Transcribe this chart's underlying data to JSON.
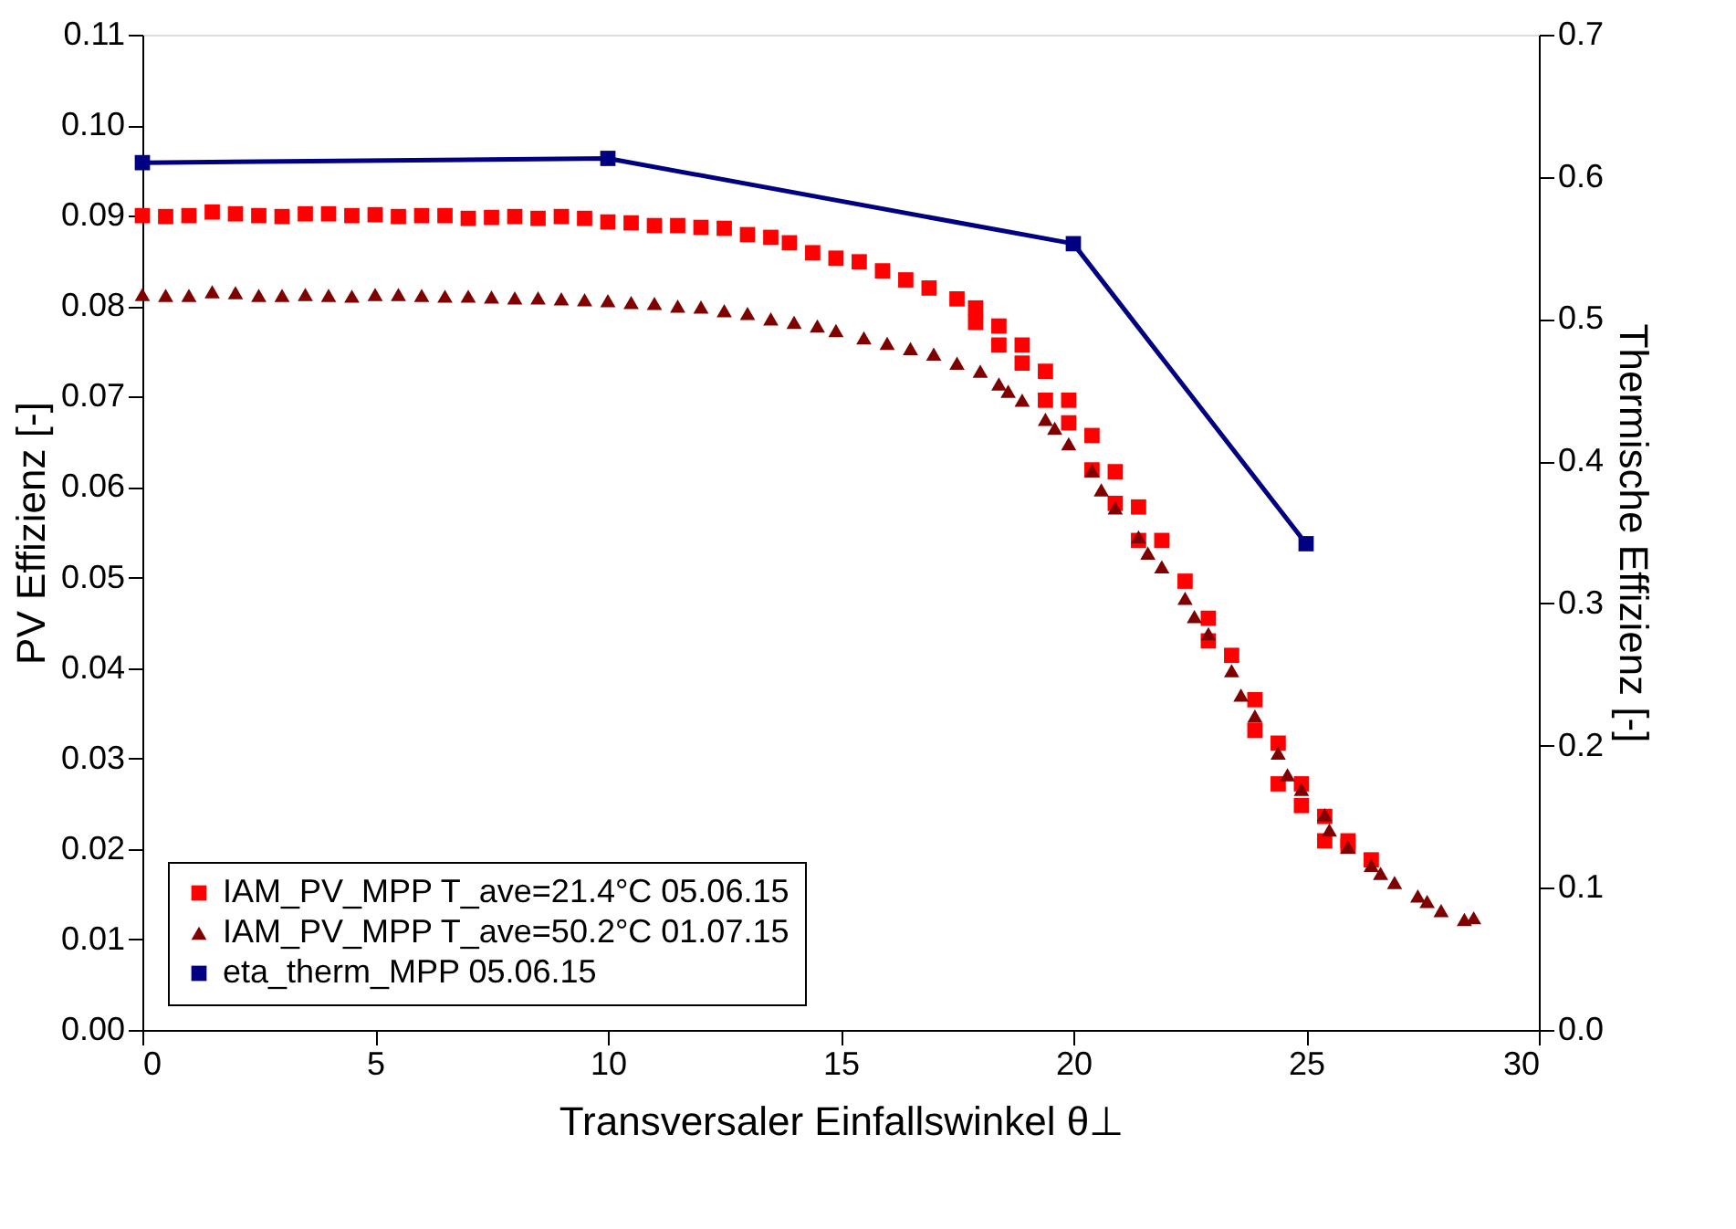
{
  "chart_data": {
    "type": "scatter",
    "xlabel": "Transversaler Einfallswinkel θ⊥",
    "ylabel": "PV Effizienz [-]",
    "y2label": "Thermische Effizienz [-]",
    "xlim": [
      0,
      30
    ],
    "xticks": [
      0,
      5,
      10,
      15,
      20,
      25,
      30
    ],
    "ylim": [
      0,
      0.11
    ],
    "yticks": [
      {
        "value": 0,
        "label": "0.00"
      },
      {
        "value": 0.01,
        "label": "0.01"
      },
      {
        "value": 0.02,
        "label": "0.02"
      },
      {
        "value": 0.03,
        "label": "0.03"
      },
      {
        "value": 0.04,
        "label": "0.04"
      },
      {
        "value": 0.05,
        "label": "0.05"
      },
      {
        "value": 0.06,
        "label": "0.06"
      },
      {
        "value": 0.07,
        "label": "0.07"
      },
      {
        "value": 0.08,
        "label": "0.08"
      },
      {
        "value": 0.09,
        "label": "0.09"
      },
      {
        "value": 0.1,
        "label": "0.10"
      },
      {
        "value": 0.11,
        "label": "0.11"
      }
    ],
    "y2lim": [
      0,
      0.7
    ],
    "y2ticks": [
      {
        "value": 0,
        "label": "0.0"
      },
      {
        "value": 0.1,
        "label": "0.1"
      },
      {
        "value": 0.2,
        "label": "0.2"
      },
      {
        "value": 0.3,
        "label": "0.3"
      },
      {
        "value": 0.4,
        "label": "0.4"
      },
      {
        "value": 0.5,
        "label": "0.5"
      },
      {
        "value": 0.6,
        "label": "0.6"
      },
      {
        "value": 0.7,
        "label": "0.7"
      }
    ],
    "legend": "bottom left",
    "series": [
      {
        "name": "IAM_PV_MPP T_ave=21.4°C 05.06.15",
        "marker": "square",
        "color": "#ff0000",
        "x": [
          0,
          0.5,
          1,
          1.5,
          2,
          2.5,
          3,
          3.5,
          4,
          4.5,
          5,
          5.5,
          6,
          6.5,
          7,
          7.5,
          8,
          8.5,
          9,
          9.5,
          10,
          10.5,
          11,
          11.5,
          12,
          12.5,
          13,
          13.5,
          13.9,
          14.4,
          14.9,
          15.4,
          15.9,
          16.4,
          16.9,
          17.5,
          17.9,
          17.9,
          18.4,
          18.4,
          18.9,
          18.9,
          19.4,
          19.4,
          19.9,
          19.9,
          20.4,
          20.4,
          20.9,
          20.9,
          21.4,
          21.4,
          21.9,
          22.4,
          22.9,
          22.9,
          23.4,
          23.9,
          23.9,
          24.4,
          24.4,
          24.9,
          24.9,
          25.4,
          25.4,
          25.9,
          25.9,
          26.4
        ],
        "values": [
          0.09,
          0.0899,
          0.09,
          0.0904,
          0.0902,
          0.09,
          0.0899,
          0.0902,
          0.0902,
          0.09,
          0.0901,
          0.0899,
          0.09,
          0.09,
          0.0897,
          0.0898,
          0.0899,
          0.0897,
          0.0899,
          0.0897,
          0.0893,
          0.0892,
          0.0889,
          0.0889,
          0.0887,
          0.0886,
          0.0879,
          0.0876,
          0.087,
          0.0859,
          0.0853,
          0.0849,
          0.0839,
          0.0829,
          0.082,
          0.0808,
          0.0798,
          0.0782,
          0.0778,
          0.0757,
          0.0757,
          0.0737,
          0.0728,
          0.0696,
          0.0696,
          0.0671,
          0.0657,
          0.0619,
          0.0617,
          0.0582,
          0.0578,
          0.0541,
          0.0541,
          0.0496,
          0.0455,
          0.043,
          0.0414,
          0.0365,
          0.0331,
          0.0317,
          0.0272,
          0.0272,
          0.0248,
          0.0236,
          0.0209,
          0.0209,
          0.0203,
          0.0188
        ]
      },
      {
        "name": "IAM_PV_MPP T_ave=50.2°C 01.07.15",
        "marker": "triangle",
        "color": "#800000",
        "x": [
          0,
          0.5,
          1,
          1.5,
          2,
          2.5,
          3,
          3.5,
          4,
          4.5,
          5,
          5.5,
          6,
          6.5,
          7,
          7.5,
          8,
          8.5,
          9,
          9.5,
          10,
          10.5,
          11,
          11.5,
          12,
          12.5,
          13,
          13.5,
          14,
          14.5,
          14.9,
          15.5,
          16,
          16.5,
          17,
          17.5,
          18,
          18.4,
          18.6,
          18.9,
          19.4,
          19.6,
          19.9,
          20.4,
          20.6,
          20.9,
          21.4,
          21.6,
          21.9,
          22.4,
          22.6,
          22.9,
          23.4,
          23.6,
          23.9,
          24.4,
          24.6,
          24.9,
          25.4,
          25.5,
          25.9,
          26.4,
          26.6,
          26.9,
          27.4,
          27.6,
          27.9,
          28.4,
          28.6
        ],
        "values": [
          0.0813,
          0.0812,
          0.0812,
          0.0816,
          0.0815,
          0.0812,
          0.0812,
          0.0813,
          0.0812,
          0.0811,
          0.0813,
          0.0813,
          0.0812,
          0.0811,
          0.0811,
          0.081,
          0.0809,
          0.0809,
          0.0808,
          0.0807,
          0.0806,
          0.0804,
          0.0803,
          0.08,
          0.0799,
          0.0795,
          0.0792,
          0.0786,
          0.0782,
          0.0778,
          0.0773,
          0.0765,
          0.0759,
          0.0753,
          0.0747,
          0.0737,
          0.0728,
          0.0714,
          0.0706,
          0.0696,
          0.0675,
          0.0665,
          0.0648,
          0.0618,
          0.0597,
          0.0577,
          0.0545,
          0.0527,
          0.0512,
          0.0477,
          0.0457,
          0.0438,
          0.0397,
          0.037,
          0.0347,
          0.0306,
          0.0282,
          0.0266,
          0.0238,
          0.0221,
          0.0202,
          0.0182,
          0.0173,
          0.0163,
          0.0148,
          0.0142,
          0.0132,
          0.0122,
          0.0124
        ]
      },
      {
        "name": "eta_therm_MPP 05.06.15",
        "type": "line",
        "axis": "y2",
        "marker": "square",
        "line_style": "solid",
        "color": "#000080",
        "x": [
          0,
          10,
          20,
          25
        ],
        "values": [
          0.61,
          0.613,
          0.553,
          0.342
        ]
      }
    ]
  }
}
